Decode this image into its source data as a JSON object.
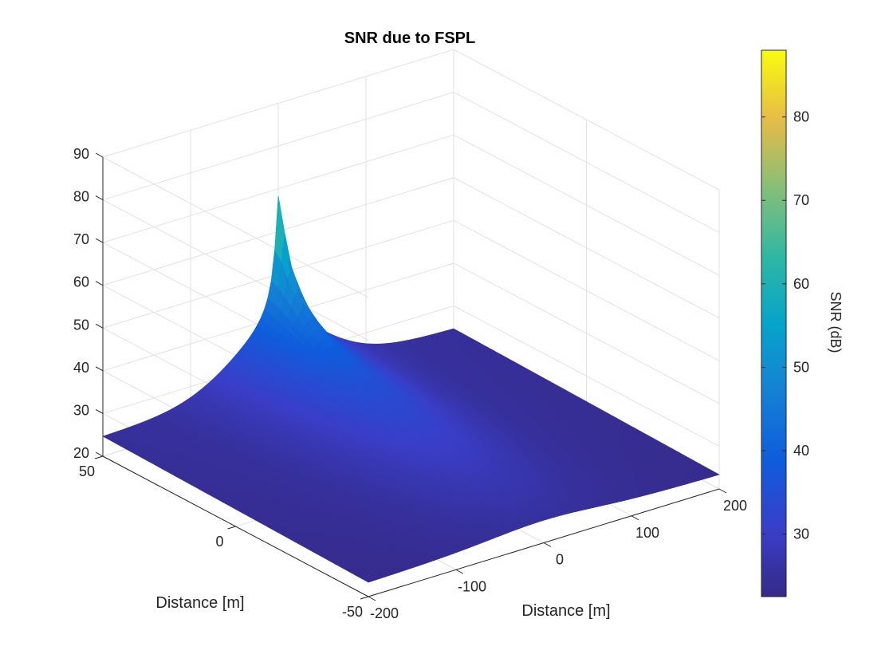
{
  "chart_data": {
    "type": "surface",
    "title": "SNR due to FSPL",
    "x": {
      "label": "Distance [m]",
      "range": [
        -200,
        200
      ],
      "ticks": [
        -200,
        -100,
        0,
        100,
        200
      ],
      "tick_labels": [
        "-200",
        "-100",
        "0",
        "100",
        "200"
      ]
    },
    "y": {
      "label": "Distance [m]",
      "range": [
        -50,
        50
      ],
      "ticks": [
        -50,
        0,
        50
      ],
      "tick_labels": [
        "-50",
        "0",
        "50"
      ]
    },
    "z": {
      "range": [
        20,
        90
      ],
      "ticks": [
        20,
        30,
        40,
        50,
        60,
        70,
        80,
        90
      ],
      "tick_labels": [
        "20",
        "30",
        "40",
        "50",
        "60",
        "70",
        "80",
        "90"
      ]
    },
    "colorbar": {
      "label": "SNR (dB)",
      "range": [
        22.5,
        88
      ],
      "ticks": [
        30,
        40,
        50,
        60,
        70,
        80
      ],
      "tick_labels": [
        "30",
        "40",
        "50",
        "60",
        "70",
        "80"
      ],
      "colormap": "parula"
    },
    "peak": {
      "x": 0,
      "y": 50,
      "z": 84
    },
    "surface_profile": {
      "y": [
        -50,
        -25,
        0,
        25,
        50
      ],
      "snr_at_x0": [
        24,
        26,
        31,
        40,
        84
      ],
      "snr_at_x_edges": [
        22.5,
        23,
        24,
        25,
        26
      ]
    },
    "grid": true,
    "background": "#ffffff",
    "grid_color": "#e2e2e2"
  }
}
